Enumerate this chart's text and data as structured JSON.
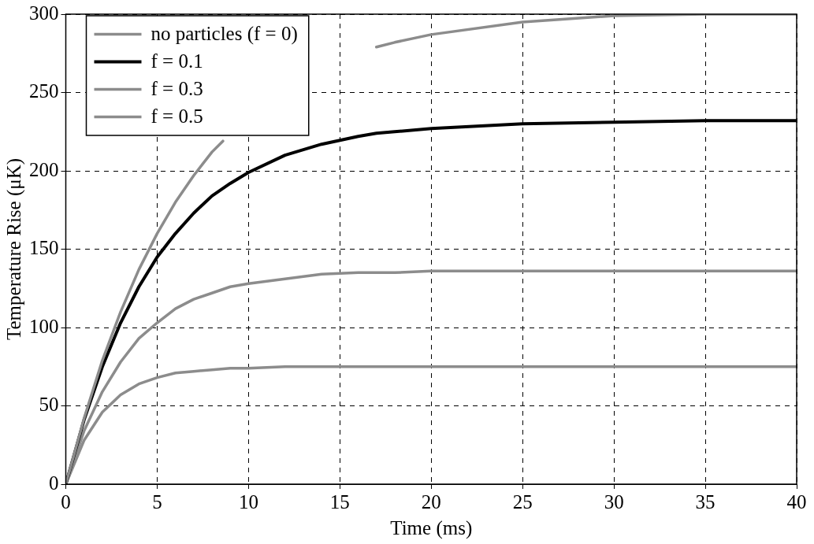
{
  "chart_data": {
    "type": "line",
    "xlabel": "Time (ms)",
    "ylabel": "Temperature Rise (μK)",
    "x": [
      0,
      1,
      2,
      3,
      4,
      5,
      6,
      7,
      8,
      9,
      10,
      12,
      14,
      16,
      17,
      18,
      20,
      25,
      30,
      35,
      40
    ],
    "series": [
      {
        "name": "no particles (f = 0)",
        "color": "#8c8c8c",
        "x": [
          0,
          1,
          2,
          3,
          4,
          5,
          6,
          7,
          8,
          8.6,
          12,
          17,
          18,
          20,
          25,
          30,
          35,
          40
        ],
        "values": [
          0,
          42,
          79,
          110,
          137,
          160,
          180,
          197,
          212,
          219,
          null,
          279,
          282,
          287,
          295,
          299,
          300,
          300
        ]
      },
      {
        "name": "f = 0.1",
        "color": "#000000",
        "values": [
          0,
          41,
          75,
          103,
          126,
          145,
          160,
          173,
          184,
          192,
          199,
          210,
          217,
          222,
          224,
          225,
          227,
          230,
          231,
          232,
          232
        ]
      },
      {
        "name": "f = 0.3",
        "color": "#8c8c8c",
        "values": [
          0,
          34,
          59,
          78,
          93,
          103,
          112,
          118,
          122,
          126,
          128,
          131,
          134,
          135,
          135,
          135,
          136,
          136,
          136,
          136,
          136
        ]
      },
      {
        "name": "f = 0.5",
        "color": "#8c8c8c",
        "values": [
          0,
          28,
          46,
          57,
          64,
          68,
          71,
          72,
          73,
          74,
          74,
          75,
          75,
          75,
          75,
          75,
          75,
          75,
          75,
          75,
          75
        ]
      }
    ],
    "xlim": [
      0,
      40
    ],
    "xticks": [
      0,
      5,
      10,
      15,
      20,
      25,
      30,
      35,
      40
    ],
    "ylim": [
      0,
      300
    ],
    "yticks": [
      0,
      50,
      100,
      150,
      200,
      250,
      300
    ],
    "grid": true,
    "legend": "top left",
    "marker": "none",
    "line_style": "solid"
  }
}
